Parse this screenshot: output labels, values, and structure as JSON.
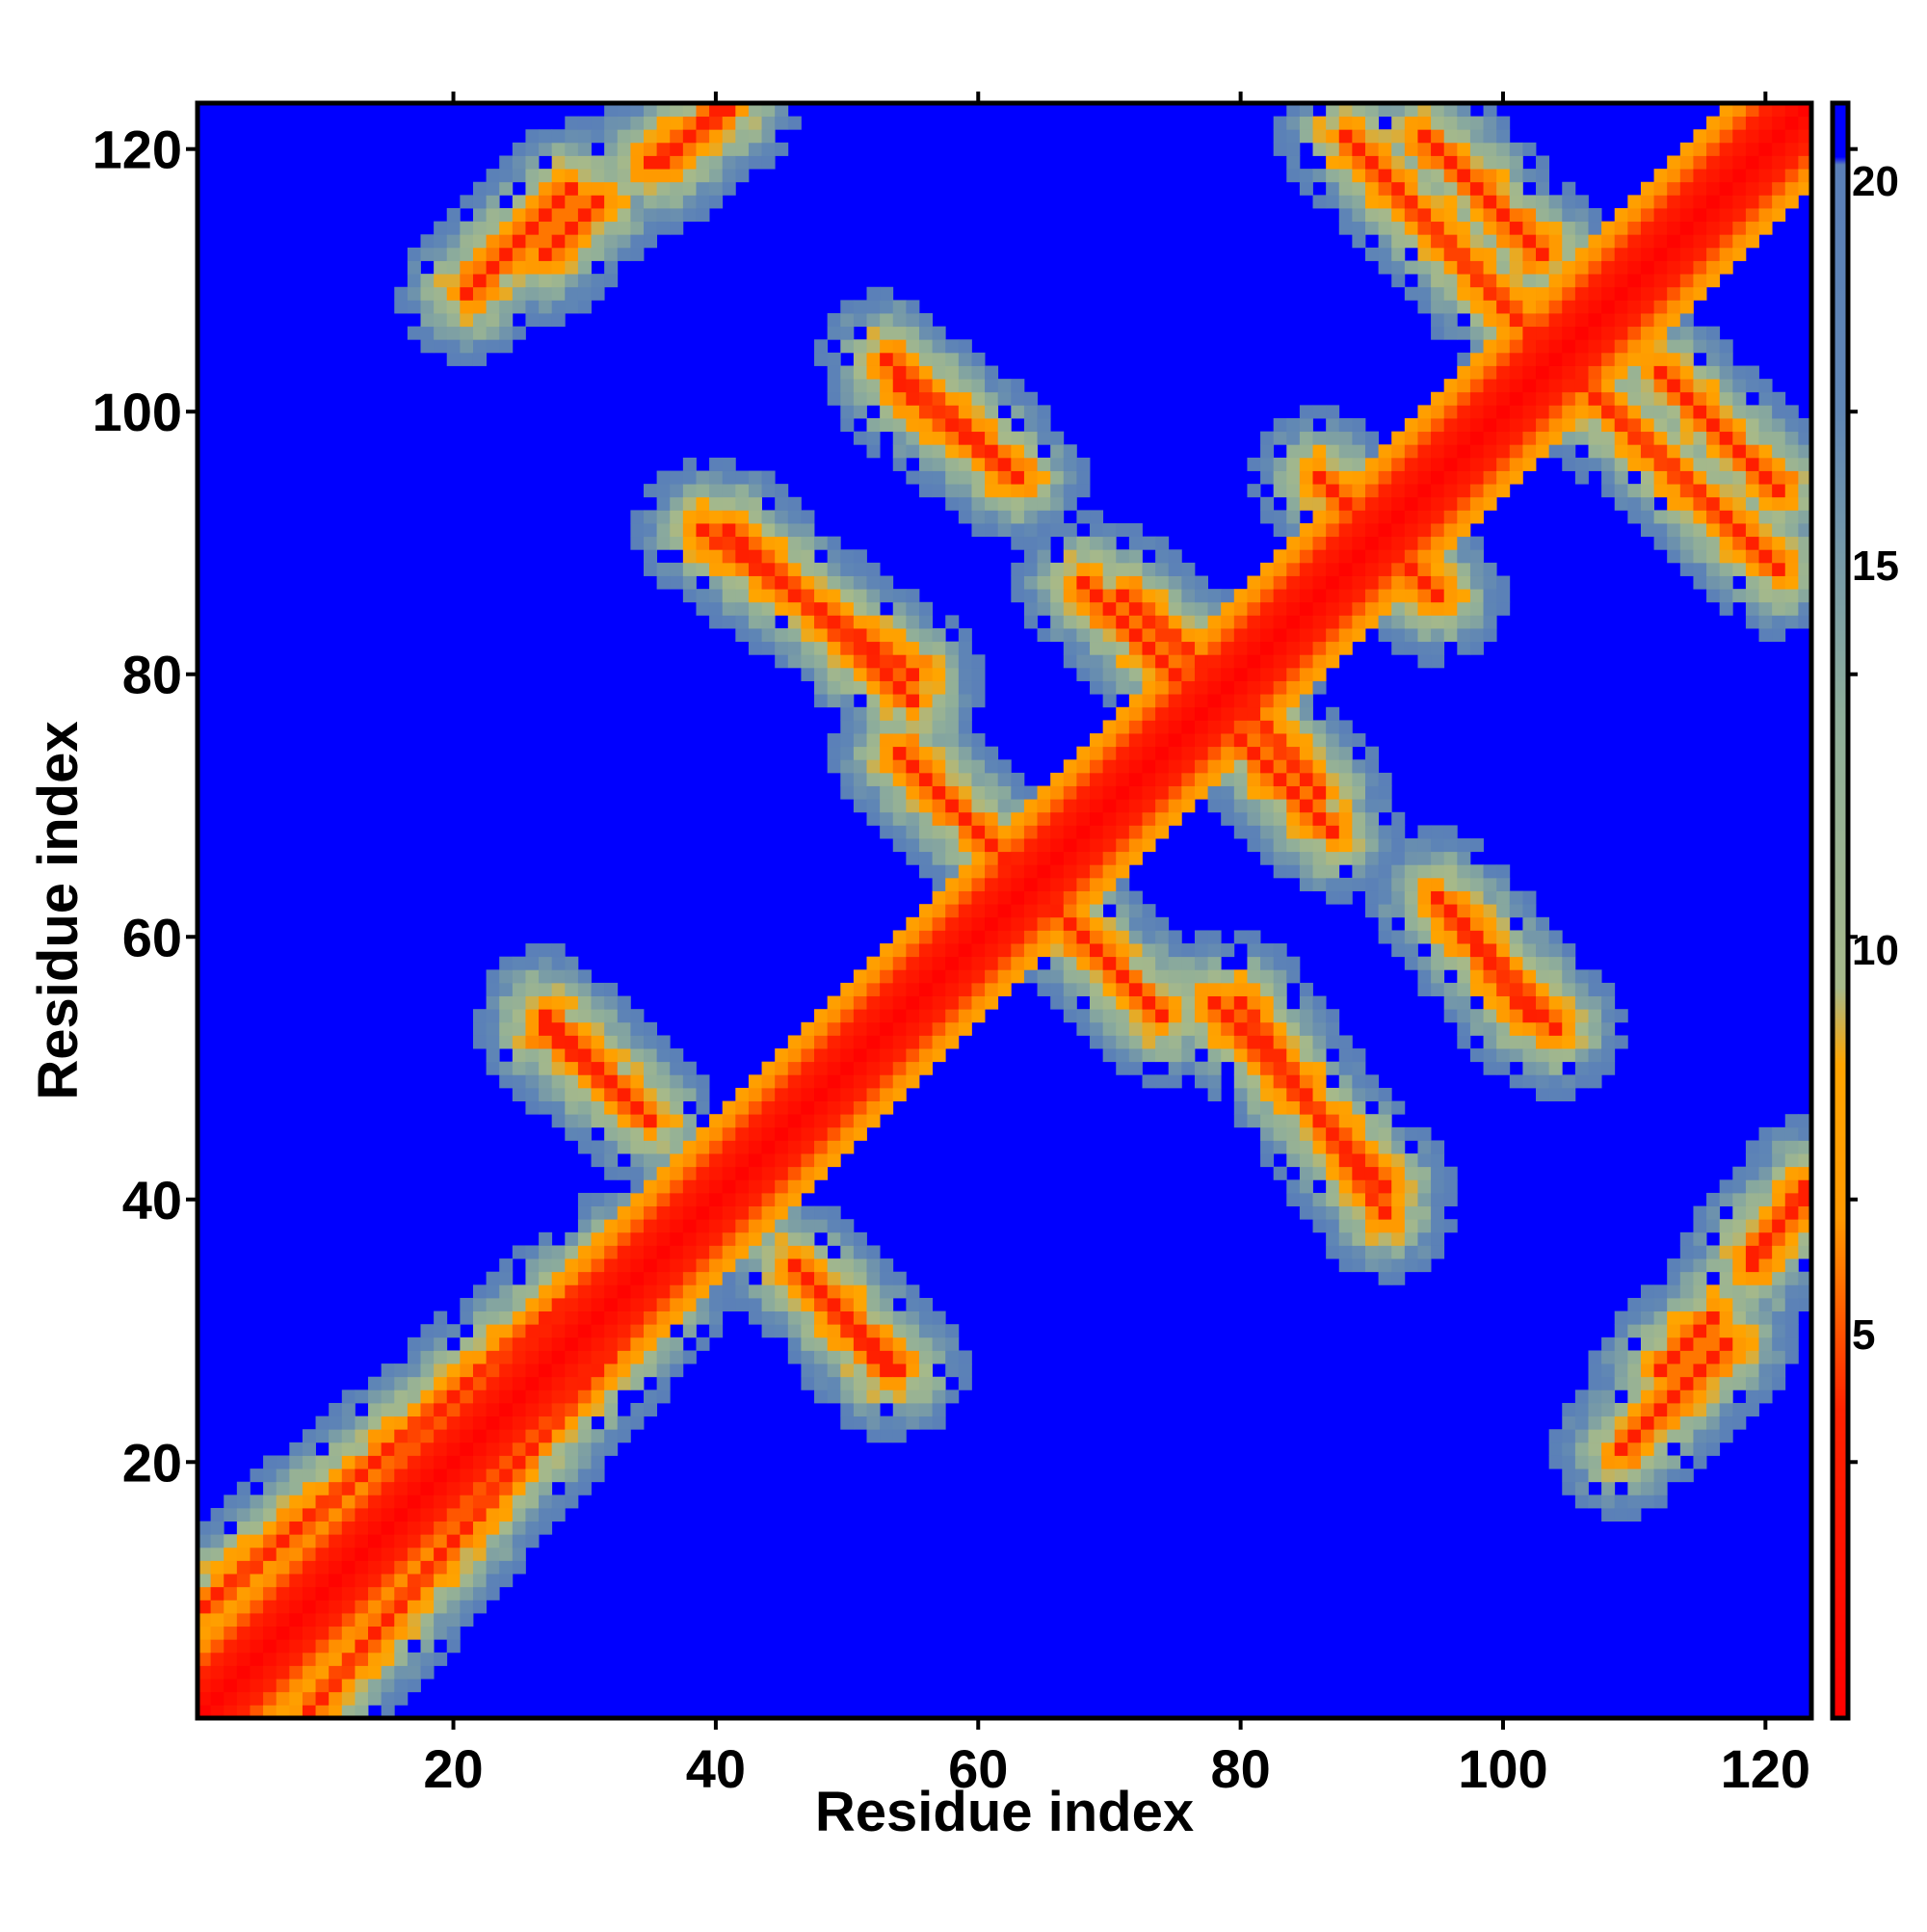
{
  "chart_data": {
    "type": "heatmap",
    "title": "",
    "xlabel": "Residue index",
    "ylabel": "Residue index",
    "n_residues": 123,
    "xlim": [
      1,
      123
    ],
    "ylim": [
      1,
      123
    ],
    "x_ticks": [
      20,
      40,
      60,
      80,
      100,
      120
    ],
    "y_ticks": [
      20,
      40,
      60,
      80,
      100,
      120
    ],
    "colorbar": {
      "min": 0,
      "max": 21,
      "ticks": [
        5,
        10,
        15,
        20
      ],
      "stops": [
        {
          "value": 0,
          "color": "#ff0000"
        },
        {
          "value": 4,
          "color": "#ff2200"
        },
        {
          "value": 6.5,
          "color": "#ff9900"
        },
        {
          "value": 8.5,
          "color": "#ffa500"
        },
        {
          "value": 9.5,
          "color": "#a6b98a"
        },
        {
          "value": 13,
          "color": "#8fae9a"
        },
        {
          "value": 17,
          "color": "#5f86b5"
        },
        {
          "value": 20.2,
          "color": "#5a7fb8"
        },
        {
          "value": 20.3,
          "color": "#0000ff"
        },
        {
          "value": 21,
          "color": "#0000ff"
        }
      ]
    },
    "background_value": 21,
    "diagonal": {
      "width_residues": 2,
      "value": 0
    },
    "contact_bands": [
      {
        "i0": 1,
        "j0": 9,
        "i1": 33,
        "j1": 36,
        "note": "near-diagonal parallel band"
      },
      {
        "i0": 27,
        "j0": 54,
        "i1": 34,
        "j1": 47
      },
      {
        "i0": 21,
        "j0": 109,
        "i1": 29,
        "j1": 117
      },
      {
        "i0": 36,
        "j0": 119,
        "i1": 40,
        "j1": 123
      },
      {
        "i0": 39,
        "j0": 91,
        "i1": 55,
        "j1": 80
      },
      {
        "i0": 46,
        "j0": 35,
        "i1": 53,
        "j1": 27
      },
      {
        "i0": 53,
        "j0": 104,
        "i1": 62,
        "j1": 96
      },
      {
        "i0": 54,
        "j0": 74,
        "i1": 63,
        "j1": 65
      },
      {
        "i0": 61,
        "j0": 67,
        "i1": 71,
        "j1": 57
      },
      {
        "i0": 68,
        "j0": 87,
        "i1": 76,
        "j1": 79
      },
      {
        "i0": 78,
        "j0": 55,
        "i1": 91,
        "j1": 41
      },
      {
        "i0": 80,
        "j0": 78,
        "i1": 86,
        "j1": 71
      },
      {
        "i0": 86,
        "j0": 95,
        "i1": 93,
        "j1": 88
      },
      {
        "i0": 94,
        "j0": 121,
        "i1": 103,
        "j1": 112
      },
      {
        "i0": 95,
        "j0": 63,
        "i1": 102,
        "j1": 54
      },
      {
        "i0": 103,
        "j0": 105,
        "i1": 121,
        "j1": 88
      },
      {
        "i0": 119,
        "j0": 35,
        "i1": 123,
        "j1": 41
      },
      {
        "i0": 112,
        "j0": 27,
        "i1": 116,
        "j1": 31
      }
    ]
  }
}
